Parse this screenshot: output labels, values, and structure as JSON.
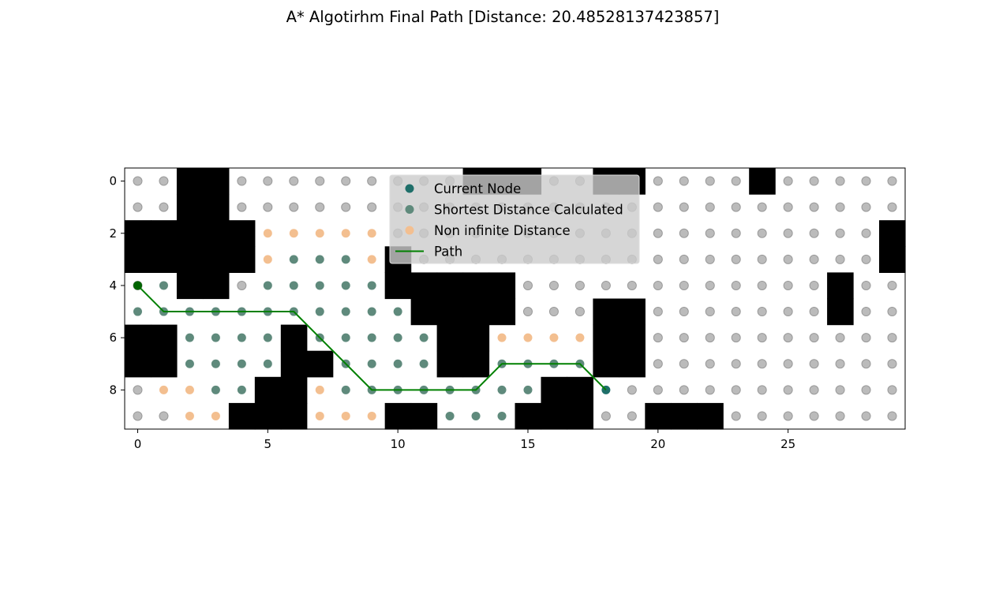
{
  "chart_data": {
    "type": "scatter",
    "title": "A* Algotirhm Final Path [Distance: 20.48528137423857]",
    "xlabel": "",
    "ylabel": "",
    "xlim": [
      -0.5,
      29.5
    ],
    "ylim": [
      9.5,
      -0.5
    ],
    "x_ticks": [
      0,
      5,
      10,
      15,
      20,
      25
    ],
    "y_ticks": [
      0,
      2,
      4,
      6,
      8
    ],
    "grid": false,
    "legend_position": "upper-center",
    "colors": {
      "obstacle": "#000000",
      "unvisited": "#b4b4b4",
      "current": "#1f6f6a",
      "shortest": "#5f8a7c",
      "non_infinite": "#f3bf90",
      "path": "#008000",
      "start": "#006400"
    },
    "obstacles": [
      [
        2,
        0
      ],
      [
        3,
        0
      ],
      [
        13,
        0
      ],
      [
        14,
        0
      ],
      [
        15,
        0
      ],
      [
        18,
        0
      ],
      [
        19,
        0
      ],
      [
        24,
        0
      ],
      [
        2,
        1
      ],
      [
        3,
        1
      ],
      [
        0,
        2
      ],
      [
        1,
        2
      ],
      [
        2,
        2
      ],
      [
        3,
        2
      ],
      [
        4,
        2
      ],
      [
        29,
        2
      ],
      [
        0,
        3
      ],
      [
        1,
        3
      ],
      [
        2,
        3
      ],
      [
        3,
        3
      ],
      [
        4,
        3
      ],
      [
        10,
        3
      ],
      [
        29,
        3
      ],
      [
        2,
        4
      ],
      [
        3,
        4
      ],
      [
        10,
        4
      ],
      [
        11,
        4
      ],
      [
        12,
        4
      ],
      [
        13,
        4
      ],
      [
        14,
        4
      ],
      [
        27,
        4
      ],
      [
        11,
        5
      ],
      [
        12,
        5
      ],
      [
        13,
        5
      ],
      [
        14,
        5
      ],
      [
        18,
        5
      ],
      [
        19,
        5
      ],
      [
        27,
        5
      ],
      [
        0,
        6
      ],
      [
        1,
        6
      ],
      [
        6,
        6
      ],
      [
        12,
        6
      ],
      [
        13,
        6
      ],
      [
        18,
        6
      ],
      [
        19,
        6
      ],
      [
        0,
        7
      ],
      [
        1,
        7
      ],
      [
        6,
        7
      ],
      [
        7,
        7
      ],
      [
        12,
        7
      ],
      [
        13,
        7
      ],
      [
        18,
        7
      ],
      [
        19,
        7
      ],
      [
        5,
        8
      ],
      [
        6,
        8
      ],
      [
        16,
        8
      ],
      [
        17,
        8
      ],
      [
        4,
        9
      ],
      [
        5,
        9
      ],
      [
        6,
        9
      ],
      [
        10,
        9
      ],
      [
        11,
        9
      ],
      [
        15,
        9
      ],
      [
        16,
        9
      ],
      [
        17,
        9
      ],
      [
        20,
        9
      ],
      [
        21,
        9
      ],
      [
        22,
        9
      ]
    ],
    "series": [
      {
        "name": "Current Node",
        "points": [
          [
            18,
            8
          ]
        ]
      },
      {
        "name": "Shortest Distance Calculated",
        "points": [
          [
            6,
            3
          ],
          [
            7,
            3
          ],
          [
            8,
            3
          ],
          [
            1,
            4
          ],
          [
            5,
            4
          ],
          [
            6,
            4
          ],
          [
            7,
            4
          ],
          [
            8,
            4
          ],
          [
            9,
            4
          ],
          [
            0,
            5
          ],
          [
            1,
            5
          ],
          [
            2,
            5
          ],
          [
            3,
            5
          ],
          [
            4,
            5
          ],
          [
            5,
            5
          ],
          [
            6,
            5
          ],
          [
            7,
            5
          ],
          [
            8,
            5
          ],
          [
            9,
            5
          ],
          [
            10,
            5
          ],
          [
            2,
            6
          ],
          [
            3,
            6
          ],
          [
            4,
            6
          ],
          [
            5,
            6
          ],
          [
            7,
            6
          ],
          [
            8,
            6
          ],
          [
            9,
            6
          ],
          [
            10,
            6
          ],
          [
            11,
            6
          ],
          [
            2,
            7
          ],
          [
            3,
            7
          ],
          [
            4,
            7
          ],
          [
            5,
            7
          ],
          [
            8,
            7
          ],
          [
            9,
            7
          ],
          [
            10,
            7
          ],
          [
            11,
            7
          ],
          [
            14,
            7
          ],
          [
            15,
            7
          ],
          [
            16,
            7
          ],
          [
            17,
            7
          ],
          [
            3,
            8
          ],
          [
            4,
            8
          ],
          [
            8,
            8
          ],
          [
            9,
            8
          ],
          [
            10,
            8
          ],
          [
            11,
            8
          ],
          [
            12,
            8
          ],
          [
            13,
            8
          ],
          [
            14,
            8
          ],
          [
            15,
            8
          ],
          [
            12,
            9
          ],
          [
            13,
            9
          ],
          [
            14,
            9
          ]
        ]
      },
      {
        "name": "Non infinite Distance",
        "points": [
          [
            5,
            2
          ],
          [
            6,
            2
          ],
          [
            7,
            2
          ],
          [
            8,
            2
          ],
          [
            9,
            2
          ],
          [
            5,
            3
          ],
          [
            9,
            3
          ],
          [
            14,
            6
          ],
          [
            15,
            6
          ],
          [
            16,
            6
          ],
          [
            17,
            6
          ],
          [
            1,
            8
          ],
          [
            2,
            8
          ],
          [
            7,
            8
          ],
          [
            2,
            9
          ],
          [
            3,
            9
          ],
          [
            7,
            9
          ],
          [
            8,
            9
          ],
          [
            9,
            9
          ]
        ]
      },
      {
        "name": "Path",
        "points": [
          [
            0,
            4
          ],
          [
            1,
            5
          ],
          [
            2,
            5
          ],
          [
            3,
            5
          ],
          [
            4,
            5
          ],
          [
            5,
            5
          ],
          [
            6,
            5
          ],
          [
            7,
            6
          ],
          [
            8,
            7
          ],
          [
            9,
            8
          ],
          [
            10,
            8
          ],
          [
            11,
            8
          ],
          [
            12,
            8
          ],
          [
            13,
            8
          ],
          [
            14,
            7
          ],
          [
            15,
            7
          ],
          [
            16,
            7
          ],
          [
            17,
            7
          ],
          [
            18,
            8
          ]
        ]
      }
    ],
    "start_node": [
      0,
      4
    ]
  }
}
